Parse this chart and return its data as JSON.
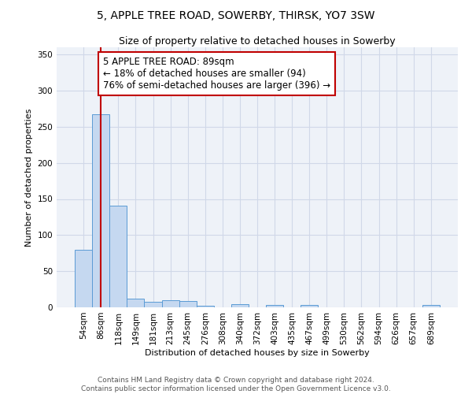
{
  "title": "5, APPLE TREE ROAD, SOWERBY, THIRSK, YO7 3SW",
  "subtitle": "Size of property relative to detached houses in Sowerby",
  "xlabel": "Distribution of detached houses by size in Sowerby",
  "ylabel": "Number of detached properties",
  "categories": [
    "54sqm",
    "86sqm",
    "118sqm",
    "149sqm",
    "181sqm",
    "213sqm",
    "245sqm",
    "276sqm",
    "308sqm",
    "340sqm",
    "372sqm",
    "403sqm",
    "435sqm",
    "467sqm",
    "499sqm",
    "530sqm",
    "562sqm",
    "594sqm",
    "626sqm",
    "657sqm",
    "689sqm"
  ],
  "values": [
    80,
    267,
    141,
    12,
    8,
    10,
    9,
    2,
    0,
    4,
    0,
    3,
    0,
    3,
    0,
    0,
    0,
    0,
    0,
    0,
    3
  ],
  "bar_color": "#c5d8f0",
  "bar_edge_color": "#5b9bd5",
  "vline_x_index": 1,
  "vline_color": "#c00000",
  "annotation_text": "5 APPLE TREE ROAD: 89sqm\n← 18% of detached houses are smaller (94)\n76% of semi-detached houses are larger (396) →",
  "annotation_box_color": "white",
  "annotation_box_edge_color": "#c00000",
  "ylim": [
    0,
    360
  ],
  "yticks": [
    0,
    50,
    100,
    150,
    200,
    250,
    300,
    350
  ],
  "grid_color": "#d0d8e8",
  "background_color": "#eef2f8",
  "footer_text": "Contains HM Land Registry data © Crown copyright and database right 2024.\nContains public sector information licensed under the Open Government Licence v3.0.",
  "title_fontsize": 10,
  "subtitle_fontsize": 9,
  "axis_label_fontsize": 8,
  "tick_fontsize": 7.5,
  "annotation_fontsize": 8.5,
  "footer_fontsize": 6.5
}
